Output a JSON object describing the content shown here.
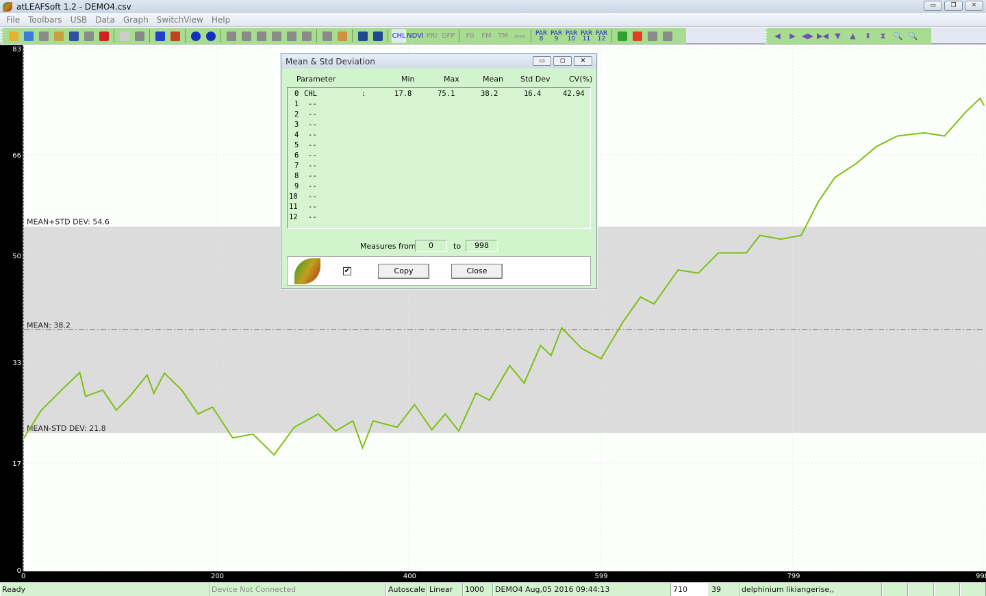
{
  "window": {
    "title": "atLEAFSoft 1.2 - DEMO4.csv",
    "controls": [
      "minimize",
      "restore",
      "close"
    ]
  },
  "menu": [
    "File",
    "Toolbars",
    "USB",
    "Data",
    "Graph",
    "SwitchView",
    "Help"
  ],
  "toolbar": {
    "file_icons": [
      "open-folder-icon",
      "open-csv-icon",
      "settings-wheel-icon",
      "help-folder-icon",
      "save-icon",
      "export-icon",
      "delete-icon",
      "print-preview-icon",
      "print-icon",
      "serial-port-icon",
      "tools-icon",
      "info-icon",
      "help-icon"
    ],
    "device_icons": [
      "device-1-icon",
      "device-2-icon",
      "device-3-icon",
      "device-4-icon",
      "device-5-icon",
      "device-6-icon",
      "param-icon",
      "target-icon",
      "list-icon",
      "mean-std-icon"
    ],
    "params": [
      "CHL",
      "NDVI",
      "PRI",
      "GFP",
      "F0",
      "FM",
      "TM",
      "Area"
    ],
    "par_buttons": [
      {
        "a": "PAR",
        "b": "8"
      },
      {
        "a": "PAR",
        "b": "9"
      },
      {
        "a": "PAR",
        "b": "10"
      },
      {
        "a": "PAR",
        "b": "11"
      },
      {
        "a": "PAR",
        "b": "12"
      }
    ],
    "extra_icons": [
      "flag-icon",
      "chart-bars-icon",
      "hourglass-icon",
      "weight-icon"
    ],
    "nav_icons": [
      "arrow-left-icon",
      "arrow-right-icon",
      "expand-horizontal-icon",
      "shrink-horizontal-icon",
      "arrow-down-icon",
      "arrow-up-icon",
      "expand-vertical-icon",
      "shrink-vertical-icon",
      "zoom-in-icon",
      "zoom-fit-icon"
    ]
  },
  "chart_data": {
    "type": "line",
    "series": [
      {
        "color": "#7cc010",
        "x": [
          0,
          18,
          39,
          58,
          64,
          82,
          96,
          110,
          128,
          135,
          146,
          164,
          181,
          196,
          217,
          238,
          260,
          281,
          306,
          324,
          342,
          352,
          363,
          388,
          406,
          424,
          438,
          452,
          470,
          484,
          505,
          520,
          537,
          548,
          559,
          580,
          600,
          623,
          641,
          655,
          680,
          701,
          722,
          751,
          765,
          787,
          808,
          826,
          843,
          865,
          886,
          908,
          936,
          957,
          979,
          994,
          998
        ],
        "y": [
          21.0,
          25.4,
          28.6,
          31.4,
          27.6,
          28.6,
          25.4,
          27.6,
          31.0,
          28.1,
          31.3,
          28.6,
          24.8,
          25.9,
          21.0,
          21.6,
          18.3,
          22.7,
          24.8,
          22.1,
          23.7,
          19.4,
          23.7,
          22.7,
          26.3,
          22.3,
          24.8,
          22.1,
          28.1,
          27.0,
          32.5,
          29.7,
          35.7,
          34.1,
          38.5,
          35.2,
          33.6,
          39.5,
          43.4,
          42.3,
          47.7,
          47.2,
          50.4,
          50.4,
          53.2,
          52.6,
          53.2,
          58.6,
          62.4,
          64.6,
          67.3,
          69.0,
          69.5,
          69.0,
          72.8,
          75.0,
          73.9
        ]
      }
    ],
    "xlim": [
      0,
      998
    ],
    "ylim": [
      0,
      83
    ],
    "xticks": [
      0,
      200,
      400,
      599,
      799,
      998
    ],
    "yticks": [
      0,
      17,
      33,
      50,
      66,
      83
    ],
    "grid": true,
    "band": {
      "low": 21.8,
      "high": 54.6,
      "color": "#dcdcdc"
    },
    "annotations": [
      {
        "label": "MEAN+STD DEV: 54.6",
        "y": 54.6
      },
      {
        "label": "MEAN: 38.2",
        "y": 38.2,
        "line": "dash-dot"
      },
      {
        "label": "MEAN-STD DEV: 21.8",
        "y": 21.8
      }
    ]
  },
  "dialog": {
    "title": "Mean & Std Deviation",
    "columns": [
      "Parameter",
      "Min",
      "Max",
      "Mean",
      "Std Dev",
      "CV(%)"
    ],
    "rows": [
      {
        "idx": "0",
        "name": "CHL",
        "sep": ":",
        "min": "17.8",
        "max": "75.1",
        "mean": "38.2",
        "std": "16.4",
        "cv": "42.94"
      },
      {
        "idx": "1",
        "name": "--"
      },
      {
        "idx": "2",
        "name": "--"
      },
      {
        "idx": "3",
        "name": "--"
      },
      {
        "idx": "4",
        "name": "--"
      },
      {
        "idx": "5",
        "name": "--"
      },
      {
        "idx": "6",
        "name": "--"
      },
      {
        "idx": "7",
        "name": "--"
      },
      {
        "idx": "8",
        "name": "--"
      },
      {
        "idx": "9",
        "name": "--"
      },
      {
        "idx": "10",
        "name": "--"
      },
      {
        "idx": "11",
        "name": "--"
      },
      {
        "idx": "12",
        "name": "--"
      }
    ],
    "measures_label": "Measures from",
    "from": "0",
    "to_label": "to",
    "to": "998",
    "checkbox_checked": true,
    "copy": "Copy",
    "close": "Close"
  },
  "status": [
    "Ready",
    "Device Not Connected",
    "Autoscale",
    "Linear",
    "1000",
    "DEMO4  Aug,05 2016 09:44:13",
    "710",
    "39",
    "delphinium likiangerise,,",
    "",
    "",
    "",
    ""
  ]
}
